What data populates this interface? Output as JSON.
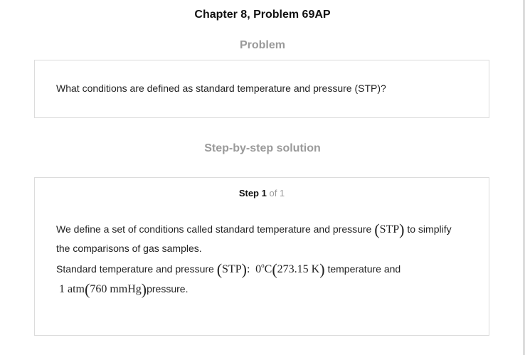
{
  "header": {
    "title": "Chapter 8, Problem 69AP"
  },
  "problem": {
    "heading": "Problem",
    "text": "What conditions are defined as standard temperature and pressure (STP)?"
  },
  "solution": {
    "heading": "Step-by-step solution",
    "step_label": "Step 1",
    "step_of": "of 1",
    "line1_text": "We define a set of conditions called standard temperature and pressure",
    "line1_math": "STP",
    "line1_tail": "to simplify",
    "line2_text": "the comparisons of gas samples.",
    "line3_text": "Standard temperature and pressure",
    "line3_math_stp": "STP",
    "line3_colon": ":",
    "line3_temp_c": "0",
    "line3_deg": "o",
    "line3_c_unit": "C",
    "line3_kelvin": "273.15 K",
    "line3_tail": "temperature and",
    "line4_atm": "1 atm",
    "line4_mmhg": "760 mmHg",
    "line4_tail": "pressure."
  }
}
